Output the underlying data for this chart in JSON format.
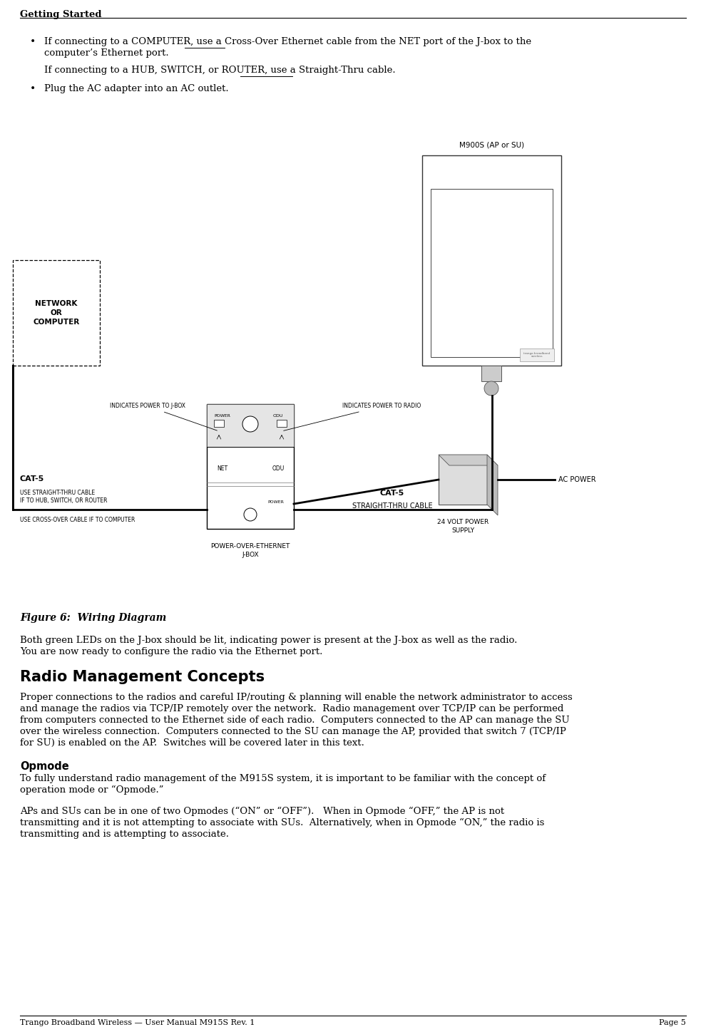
{
  "page_title": "Getting Started",
  "footer_left": "Trango Broadband Wireless — User Manual M915S Rev. 1",
  "footer_right": "Page 5",
  "bg_color": "#ffffff",
  "text_color": "#000000",
  "fig_caption": "Figure 6:  Wiring Diagram",
  "para1_line1": "Both green LEDs on the J-box should be lit, indicating power is present at the J-box as well as the radio.",
  "para1_line2": "You are now ready to configure the radio via the Ethernet port.",
  "section_title": "Radio Management Concepts",
  "para2": "Proper connections to the radios and careful IP/routing & planning will enable the network administrator to access\nand manage the radios via TCP/IP remotely over the network.  Radio management over TCP/IP can be performed\nfrom computers connected to the Ethernet side of each radio.  Computers connected to the AP can manage the SU\nover the wireless connection.  Computers connected to the SU can manage the AP, provided that switch 7 (TCP/IP\nfor SU) is enabled on the AP.  Switches will be covered later in this text.",
  "subsection_title": "Opmode",
  "para3_line1": "To fully understand radio management of the M915S system, it is important to be familiar with the concept of",
  "para3_line2": "operation mode or “Opmode.”",
  "para4_line1": "APs and SUs can be in one of two Opmodes (“ON” or “OFF”).   When in Opmode “OFF,” the AP is not",
  "para4_line2": "transmitting and it is not attempting to associate with SUs.  Alternatively, when in Opmode “ON,” the radio is",
  "para4_line3": "transmitting and is attempting to associate."
}
